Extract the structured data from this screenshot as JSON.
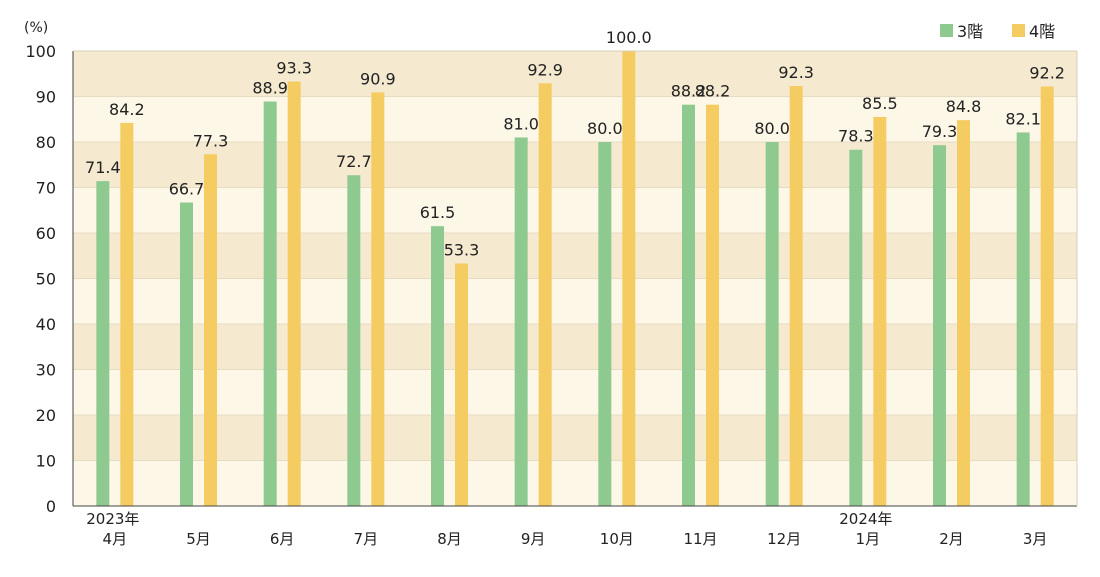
{
  "chart_data": {
    "type": "bar",
    "unit_label": "(%)",
    "ylim": [
      0,
      100
    ],
    "yticks": [
      0,
      10,
      20,
      30,
      40,
      50,
      60,
      70,
      80,
      90,
      100
    ],
    "categories": [
      {
        "year": "2023年",
        "month": "4月"
      },
      {
        "year": "",
        "month": "5月"
      },
      {
        "year": "",
        "month": "6月"
      },
      {
        "year": "",
        "month": "7月"
      },
      {
        "year": "",
        "month": "8月"
      },
      {
        "year": "",
        "month": "9月"
      },
      {
        "year": "",
        "month": "10月"
      },
      {
        "year": "",
        "month": "11月"
      },
      {
        "year": "",
        "month": "12月"
      },
      {
        "year": "2024年",
        "month": "1月"
      },
      {
        "year": "",
        "month": "2月"
      },
      {
        "year": "",
        "month": "3月"
      }
    ],
    "series": [
      {
        "name": "3階",
        "color": "#8ec98f",
        "values": [
          71.4,
          66.7,
          88.9,
          72.7,
          61.5,
          81.0,
          80.0,
          88.2,
          80.0,
          78.3,
          79.3,
          82.1
        ],
        "labels": [
          "71.4",
          "66.7",
          "88.9",
          "72.7",
          "61.5",
          "81.0",
          "80.0",
          "88.2",
          "80.0",
          "78.3",
          "79.3",
          "82.1"
        ]
      },
      {
        "name": "4階",
        "color": "#f5cc62",
        "values": [
          84.2,
          77.3,
          93.3,
          90.9,
          53.3,
          92.9,
          100.0,
          88.2,
          92.3,
          85.5,
          84.8,
          92.2
        ],
        "labels": [
          "84.2",
          "77.3",
          "93.3",
          "90.9",
          "53.3",
          "92.9",
          "100.0",
          "88.2",
          "92.3",
          "85.5",
          "84.8",
          "92.2"
        ]
      }
    ],
    "band_colors": [
      "#fdf7e8",
      "#f5ead0"
    ],
    "grid": true,
    "legend": "top-right"
  }
}
